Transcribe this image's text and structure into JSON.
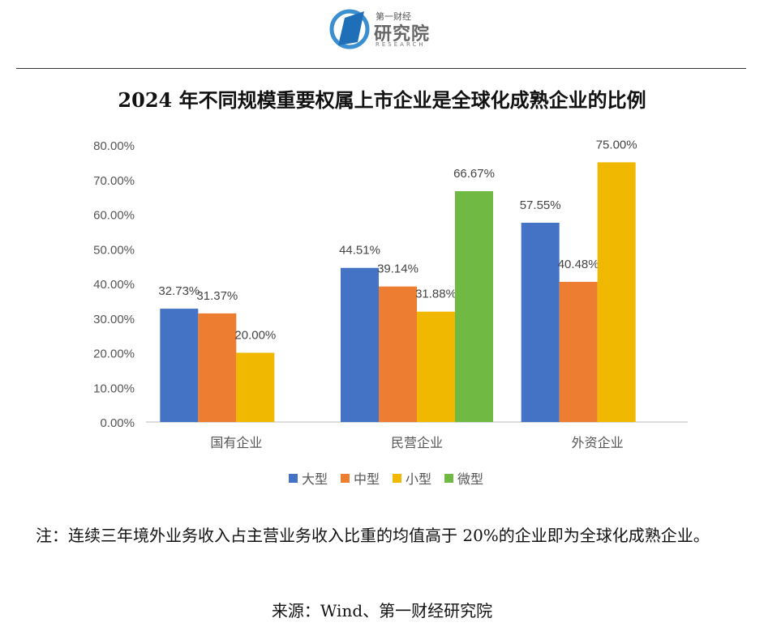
{
  "logo": {
    "top": "第一财经",
    "main": "研究院",
    "sub": "RESEARCH"
  },
  "chart_data": {
    "type": "bar",
    "title": "2024 年不同规模重要权属上市企业是全球化成熟企业的比例",
    "categories": [
      "国有企业",
      "民营企业",
      "外资企业"
    ],
    "series": [
      {
        "name": "大型",
        "color": "#4472C4",
        "values": [
          32.73,
          44.51,
          57.55
        ],
        "labels": [
          "32.73%",
          "44.51%",
          "57.55%"
        ]
      },
      {
        "name": "中型",
        "color": "#ED7D31",
        "values": [
          31.37,
          39.14,
          40.48
        ],
        "labels": [
          "31.37%",
          "39.14%",
          "40.48%"
        ]
      },
      {
        "name": "小型",
        "color": "#F0B800",
        "values": [
          20.0,
          31.88,
          75.0
        ],
        "labels": [
          "20.00%",
          "31.88%",
          "75.00%"
        ]
      },
      {
        "name": "微型",
        "color": "#70B942",
        "values": [
          null,
          66.67,
          null
        ],
        "labels": [
          "",
          "66.67%",
          ""
        ]
      }
    ],
    "ylim": [
      0,
      80
    ],
    "yticks": [
      "0.00%",
      "10.00%",
      "20.00%",
      "30.00%",
      "40.00%",
      "50.00%",
      "60.00%",
      "70.00%",
      "80.00%"
    ],
    "xlabel": "",
    "ylabel": "",
    "grid": false,
    "legend": "bottom"
  },
  "note": "注：连续三年境外业务收入占主营业务收入比重的均值高于 20%的企业即为全球化成熟企业。",
  "source": "来源：Wind、第一财经研究院"
}
